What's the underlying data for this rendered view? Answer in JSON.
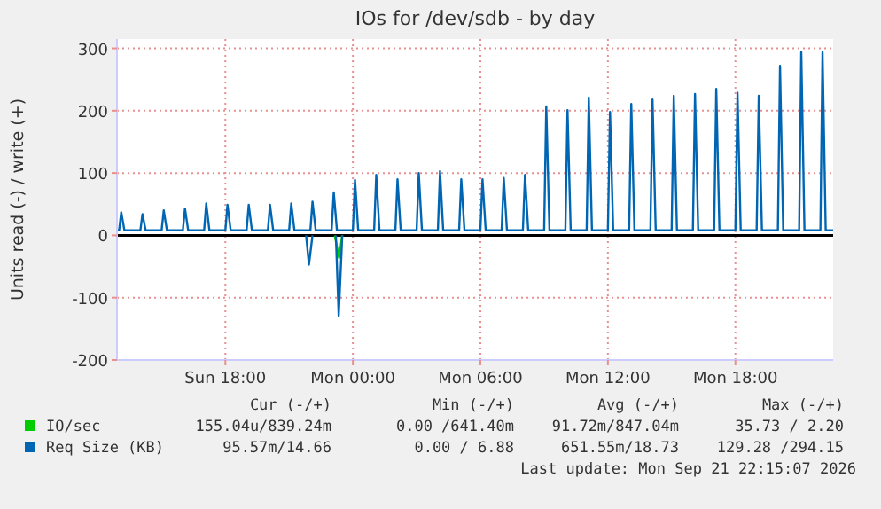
{
  "chart_data": {
    "type": "line",
    "title": "IOs for /dev/sdb - by day",
    "ylabel": "Units read (-) / write (+)",
    "xlim": [
      "2026-09-20T12:54",
      "2026-09-21T22:36"
    ],
    "xticks": [
      {
        "value": "2026-09-20T18:00",
        "label": "Sun 18:00"
      },
      {
        "value": "2026-09-21T00:00",
        "label": "Mon 00:00"
      },
      {
        "value": "2026-09-21T06:00",
        "label": "Mon 06:00"
      },
      {
        "value": "2026-09-21T12:00",
        "label": "Mon 12:00"
      },
      {
        "value": "2026-09-21T18:00",
        "label": "Mon 18:00"
      }
    ],
    "ylim": [
      -200,
      315
    ],
    "yticks": [
      -200,
      -100,
      0,
      100,
      200,
      300
    ],
    "grid": true,
    "legend": "bottom",
    "marker": "none",
    "line_style": "solid",
    "ref_lines": [
      {
        "axis": "y",
        "value": 0,
        "color": "#000000"
      }
    ],
    "series": [
      {
        "name": "IO/sec",
        "color": "#00cc00",
        "x": [
          "2026-09-20T23:09",
          "2026-09-20T23:21",
          "2026-09-20T23:30"
        ],
        "values": [
          0,
          -36,
          0
        ]
      },
      {
        "name": "Req Size (KB)",
        "color": "#0066b3",
        "x": [
          "2026-09-20T12:54",
          "2026-09-20T13:00",
          "2026-09-20T13:06",
          "2026-09-20T13:15",
          "2026-09-20T14:00",
          "2026-09-20T14:06",
          "2026-09-20T14:15",
          "2026-09-20T15:00",
          "2026-09-20T15:06",
          "2026-09-20T15:15",
          "2026-09-20T16:00",
          "2026-09-20T16:06",
          "2026-09-20T16:15",
          "2026-09-20T17:00",
          "2026-09-20T17:06",
          "2026-09-20T17:15",
          "2026-09-20T18:00",
          "2026-09-20T18:06",
          "2026-09-20T18:15",
          "2026-09-20T19:00",
          "2026-09-20T19:06",
          "2026-09-20T19:15",
          "2026-09-20T20:00",
          "2026-09-20T20:06",
          "2026-09-20T20:15",
          "2026-09-20T21:00",
          "2026-09-20T21:06",
          "2026-09-20T21:15",
          "2026-09-20T22:00",
          "2026-09-20T22:06",
          "2026-09-20T22:15",
          "2026-09-20T23:00",
          "2026-09-20T23:06",
          "2026-09-20T23:15",
          "2026-09-21T00:00",
          "2026-09-21T00:06",
          "2026-09-21T00:15",
          "2026-09-21T01:00",
          "2026-09-21T01:06",
          "2026-09-21T01:15",
          "2026-09-21T02:00",
          "2026-09-21T02:06",
          "2026-09-21T02:15",
          "2026-09-21T03:00",
          "2026-09-21T03:06",
          "2026-09-21T03:15",
          "2026-09-21T04:00",
          "2026-09-21T04:06",
          "2026-09-21T04:15",
          "2026-09-21T05:00",
          "2026-09-21T05:06",
          "2026-09-21T05:15",
          "2026-09-21T06:00",
          "2026-09-21T06:06",
          "2026-09-21T06:15",
          "2026-09-21T07:00",
          "2026-09-21T07:06",
          "2026-09-21T07:15",
          "2026-09-21T08:00",
          "2026-09-21T08:06",
          "2026-09-21T08:15",
          "2026-09-21T09:00",
          "2026-09-21T09:06",
          "2026-09-21T09:15",
          "2026-09-21T10:00",
          "2026-09-21T10:06",
          "2026-09-21T10:15",
          "2026-09-21T11:00",
          "2026-09-21T11:06",
          "2026-09-21T11:15",
          "2026-09-21T12:00",
          "2026-09-21T12:06",
          "2026-09-21T12:15",
          "2026-09-21T13:00",
          "2026-09-21T13:06",
          "2026-09-21T13:15",
          "2026-09-21T14:00",
          "2026-09-21T14:06",
          "2026-09-21T14:15",
          "2026-09-21T15:00",
          "2026-09-21T15:06",
          "2026-09-21T15:15",
          "2026-09-21T16:00",
          "2026-09-21T16:06",
          "2026-09-21T16:15",
          "2026-09-21T17:00",
          "2026-09-21T17:06",
          "2026-09-21T17:15",
          "2026-09-21T18:00",
          "2026-09-21T18:06",
          "2026-09-21T18:15",
          "2026-09-21T19:00",
          "2026-09-21T19:06",
          "2026-09-21T19:15",
          "2026-09-21T20:00",
          "2026-09-21T20:06",
          "2026-09-21T20:15",
          "2026-09-21T21:00",
          "2026-09-21T21:06",
          "2026-09-21T21:15",
          "2026-09-21T22:00",
          "2026-09-21T22:06",
          "2026-09-21T22:15",
          "2026-09-21T22:36"
        ],
        "values": [
          8,
          8,
          37,
          8,
          8,
          34,
          8,
          8,
          40,
          8,
          8,
          43,
          8,
          8,
          51,
          8,
          8,
          49,
          8,
          8,
          49,
          8,
          8,
          49,
          8,
          8,
          51,
          8,
          8,
          54,
          8,
          8,
          69,
          8,
          8,
          89,
          8,
          8,
          97,
          8,
          8,
          90,
          8,
          8,
          100,
          8,
          8,
          103,
          8,
          8,
          90,
          8,
          8,
          90,
          8,
          8,
          92,
          8,
          8,
          97,
          8,
          8,
          207,
          8,
          8,
          201,
          8,
          8,
          221,
          8,
          8,
          198,
          8,
          8,
          211,
          8,
          8,
          218,
          8,
          8,
          224,
          8,
          8,
          227,
          8,
          8,
          235,
          8,
          8,
          229,
          8,
          8,
          224,
          8,
          8,
          272,
          8,
          8,
          294,
          8,
          8,
          294,
          8,
          8
        ]
      },
      {
        "color": "#0066b3",
        "x": [
          "2026-09-20T21:48",
          "2026-09-20T21:56",
          "2026-09-20T22:06",
          "2026-09-20T22:30",
          "2026-09-20T23:12",
          "2026-09-20T23:20",
          "2026-09-20T23:30"
        ],
        "values": [
          0,
          -47,
          0,
          null,
          0,
          -129,
          0
        ]
      }
    ],
    "annotations": [
      "Cur (-/+)",
      "Min (-/+)",
      "Avg (-/+)",
      "Max (-/+)",
      "155.04u/839.24m",
      "0.00 /641.40m",
      "91.72m/847.04m",
      "35.73 / 2.20",
      "95.57m/14.66",
      "0.00 / 6.88",
      "651.55m/18.73",
      "129.28 /294.15",
      "Last update: Mon Sep 21 22:15:07 2026"
    ]
  }
}
